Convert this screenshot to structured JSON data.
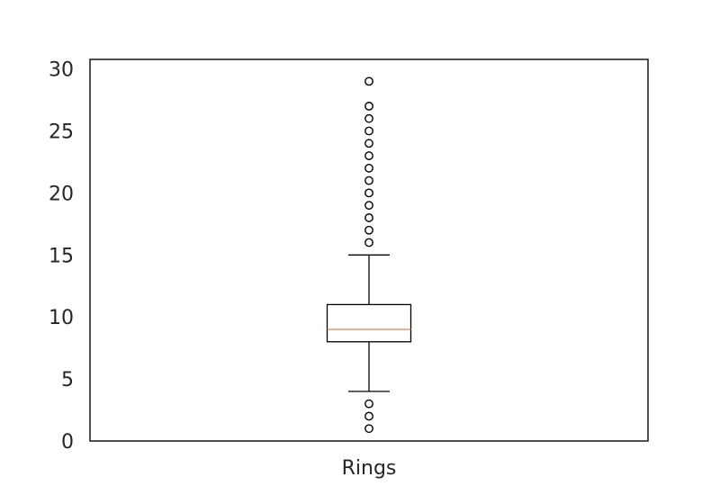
{
  "chart_data": {
    "type": "box",
    "title": "",
    "xlabel": "",
    "ylabel": "",
    "categories": [
      "Rings"
    ],
    "ylim": [
      0,
      30
    ],
    "yticks": [
      0,
      5,
      10,
      15,
      20,
      25,
      30
    ],
    "grid": false,
    "boxes": [
      {
        "name": "Rings",
        "whisker_low": 4,
        "q1": 8,
        "median": 9,
        "q3": 11,
        "whisker_high": 15,
        "outliers": [
          1,
          2,
          3,
          16,
          17,
          18,
          19,
          20,
          21,
          22,
          23,
          24,
          25,
          26,
          27,
          29
        ]
      }
    ],
    "colors": {
      "box": "#000000",
      "median": "#dd8452",
      "axes": "#262626"
    }
  }
}
